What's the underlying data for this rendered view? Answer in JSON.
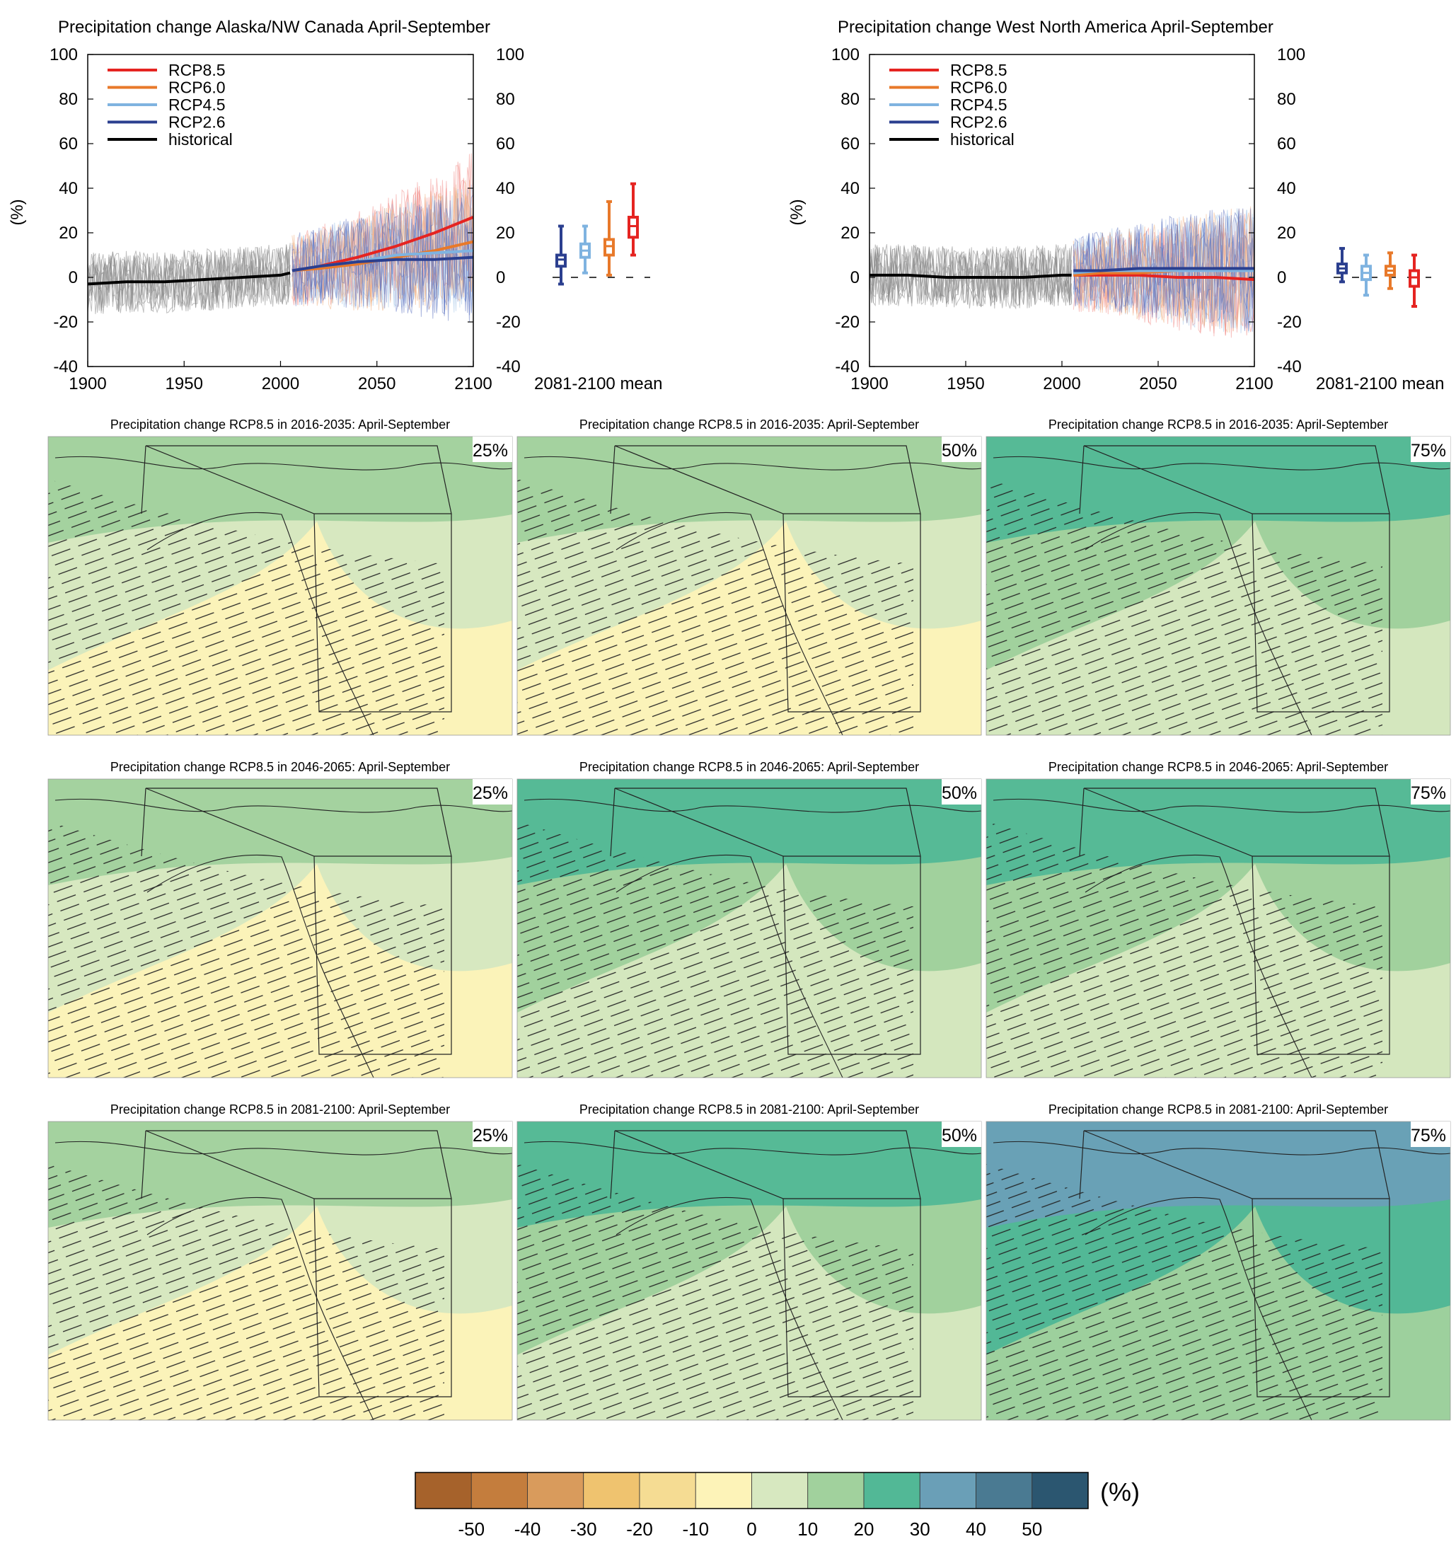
{
  "chart_data": [
    {
      "type": "line",
      "title": "Precipitation change Alaska/NW Canada April-September",
      "ylabel": "(%)",
      "xlim": [
        1900,
        2100
      ],
      "ylim": [
        -40,
        100
      ],
      "x_ticks": [
        1900,
        1950,
        2000,
        2050,
        2100
      ],
      "y_ticks": [
        -40,
        -20,
        0,
        20,
        40,
        60,
        80,
        100
      ],
      "legend": [
        "RCP8.5",
        "RCP6.0",
        "RCP4.5",
        "RCP2.6",
        "historical"
      ],
      "legend_position": "top-left",
      "series": [
        {
          "name": "historical",
          "color": "#000000",
          "x": [
            1900,
            1920,
            1940,
            1960,
            1980,
            2000,
            2005
          ],
          "values": [
            -3,
            -2,
            -2,
            -1,
            0,
            1,
            2
          ]
        },
        {
          "name": "RCP2.6",
          "color": "#2b3f8f",
          "x": [
            2006,
            2020,
            2040,
            2060,
            2080,
            2100
          ],
          "values": [
            3,
            5,
            7,
            8,
            8,
            9
          ]
        },
        {
          "name": "RCP4.5",
          "color": "#7fb3e0",
          "x": [
            2006,
            2020,
            2040,
            2060,
            2080,
            2100
          ],
          "values": [
            3,
            5,
            7,
            10,
            11,
            12
          ]
        },
        {
          "name": "RCP6.0",
          "color": "#e8792a",
          "x": [
            2006,
            2020,
            2040,
            2060,
            2080,
            2100
          ],
          "values": [
            3,
            4,
            6,
            9,
            12,
            16
          ]
        },
        {
          "name": "RCP8.5",
          "color": "#e52421",
          "x": [
            2006,
            2020,
            2040,
            2060,
            2080,
            2100
          ],
          "values": [
            3,
            5,
            9,
            14,
            20,
            27
          ]
        }
      ],
      "boxplot_label": "2081-2100 mean",
      "boxplots": [
        {
          "name": "RCP2.6",
          "color": "#2b3f8f",
          "min": -3,
          "q1": 5,
          "median": 8,
          "q3": 10,
          "max": 23
        },
        {
          "name": "RCP4.5",
          "color": "#7fb3e0",
          "min": 2,
          "q1": 9,
          "median": 12,
          "q3": 15,
          "max": 23
        },
        {
          "name": "RCP6.0",
          "color": "#e8792a",
          "min": 1,
          "q1": 10,
          "median": 14,
          "q3": 17,
          "max": 34
        },
        {
          "name": "RCP8.5",
          "color": "#e52421",
          "min": 10,
          "q1": 18,
          "median": 23,
          "q3": 27,
          "max": 42
        }
      ]
    },
    {
      "type": "line",
      "title": "Precipitation change West North America April-September",
      "ylabel": "(%)",
      "xlim": [
        1900,
        2100
      ],
      "ylim": [
        -40,
        100
      ],
      "x_ticks": [
        1900,
        1950,
        2000,
        2050,
        2100
      ],
      "y_ticks": [
        -40,
        -20,
        0,
        20,
        40,
        60,
        80,
        100
      ],
      "legend": [
        "RCP8.5",
        "RCP6.0",
        "RCP4.5",
        "RCP2.6",
        "historical"
      ],
      "legend_position": "top-left",
      "series": [
        {
          "name": "historical",
          "color": "#000000",
          "x": [
            1900,
            1920,
            1940,
            1960,
            1980,
            2000,
            2005
          ],
          "values": [
            1,
            1,
            0,
            0,
            0,
            1,
            1
          ]
        },
        {
          "name": "RCP2.6",
          "color": "#2b3f8f",
          "x": [
            2006,
            2020,
            2040,
            2060,
            2080,
            2100
          ],
          "values": [
            3,
            3,
            4,
            4,
            4,
            4
          ]
        },
        {
          "name": "RCP4.5",
          "color": "#7fb3e0",
          "x": [
            2006,
            2020,
            2040,
            2060,
            2080,
            2100
          ],
          "values": [
            2,
            3,
            3,
            3,
            3,
            3
          ]
        },
        {
          "name": "RCP6.0",
          "color": "#e8792a",
          "x": [
            2006,
            2020,
            2040,
            2060,
            2080,
            2100
          ],
          "values": [
            1,
            2,
            2,
            3,
            3,
            3
          ]
        },
        {
          "name": "RCP8.5",
          "color": "#e52421",
          "x": [
            2006,
            2020,
            2040,
            2060,
            2080,
            2100
          ],
          "values": [
            1,
            1,
            1,
            0,
            0,
            -1
          ]
        }
      ],
      "boxplot_label": "2081-2100 mean",
      "boxplots": [
        {
          "name": "RCP2.6",
          "color": "#2b3f8f",
          "min": -2,
          "q1": 2,
          "median": 4,
          "q3": 6,
          "max": 13
        },
        {
          "name": "RCP4.5",
          "color": "#7fb3e0",
          "min": -8,
          "q1": -1,
          "median": 2,
          "q3": 5,
          "max": 10
        },
        {
          "name": "RCP6.0",
          "color": "#e8792a",
          "min": -5,
          "q1": 1,
          "median": 3,
          "q3": 5,
          "max": 11
        },
        {
          "name": "RCP8.5",
          "color": "#e52421",
          "min": -13,
          "q1": -4,
          "median": 0,
          "q3": 3,
          "max": 10
        }
      ]
    },
    {
      "type": "heatmap",
      "description_type": "map-grid",
      "panels": [
        {
          "title": "Precipitation change RCP8.5 in 2016-2035: April-September",
          "percentile": "25%",
          "base": 0
        },
        {
          "title": "Precipitation change RCP8.5 in 2016-2035: April-September",
          "percentile": "50%",
          "base": 0
        },
        {
          "title": "Precipitation change RCP8.5 in 2016-2035: April-September",
          "percentile": "75%",
          "base": 10
        },
        {
          "title": "Precipitation change RCP8.5 in 2046-2065: April-September",
          "percentile": "25%",
          "base": 0
        },
        {
          "title": "Precipitation change RCP8.5 in 2046-2065: April-September",
          "percentile": "50%",
          "base": 10
        },
        {
          "title": "Precipitation change RCP8.5 in 2046-2065: April-September",
          "percentile": "75%",
          "base": 10
        },
        {
          "title": "Precipitation change RCP8.5 in 2081-2100: April-September",
          "percentile": "25%",
          "base": 0
        },
        {
          "title": "Precipitation change RCP8.5 in 2081-2100: April-September",
          "percentile": "50%",
          "base": 10
        },
        {
          "title": "Precipitation change RCP8.5 in 2081-2100: April-September",
          "percentile": "75%",
          "base": 20
        }
      ],
      "colorbar": {
        "unit": "(%)",
        "ticks": [
          "-50",
          "-40",
          "-30",
          "-20",
          "-10",
          "0",
          "10",
          "20",
          "30",
          "40",
          "50"
        ],
        "colors": [
          "#a6622b",
          "#c47d3d",
          "#d99b5c",
          "#efc36f",
          "#f5dc93",
          "#fdf3b8",
          "#d7e8c0",
          "#a1d19d",
          "#52b896",
          "#6a9fb7",
          "#4a7a92",
          "#2b5670"
        ]
      }
    }
  ]
}
